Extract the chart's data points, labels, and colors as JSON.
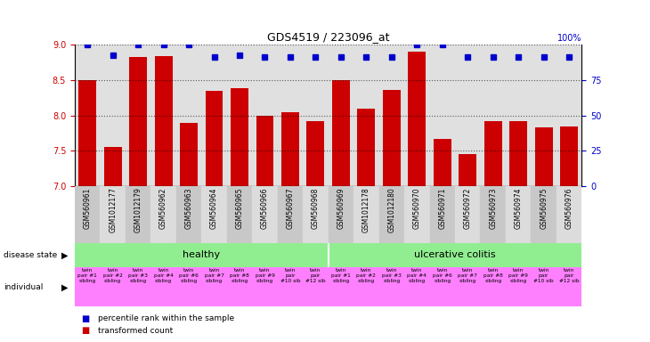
{
  "title": "GDS4519 / 223096_at",
  "samples": [
    "GSM560961",
    "GSM1012177",
    "GSM1012179",
    "GSM560962",
    "GSM560963",
    "GSM560964",
    "GSM560965",
    "GSM560966",
    "GSM560967",
    "GSM560968",
    "GSM560969",
    "GSM1012178",
    "GSM1012180",
    "GSM560970",
    "GSM560971",
    "GSM560972",
    "GSM560973",
    "GSM560974",
    "GSM560975",
    "GSM560976"
  ],
  "bar_values": [
    8.5,
    7.55,
    8.82,
    8.84,
    7.9,
    8.35,
    8.38,
    8.0,
    8.05,
    7.92,
    8.5,
    8.1,
    8.36,
    8.9,
    7.67,
    7.45,
    7.92,
    7.92,
    7.83,
    7.84
  ],
  "dot_values": [
    9.0,
    8.85,
    9.0,
    9.0,
    9.0,
    8.82,
    8.85,
    8.82,
    8.82,
    8.82,
    8.82,
    8.82,
    8.82,
    9.0,
    9.0,
    8.82,
    8.82,
    8.82,
    8.82,
    8.82
  ],
  "ylim": [
    7.0,
    9.0
  ],
  "y_ticks_left": [
    7.0,
    7.5,
    8.0,
    8.5,
    9.0
  ],
  "y_ticks_right": [
    0,
    25,
    50,
    75,
    100
  ],
  "individual_labels": [
    "twin\npair #1\nsibling",
    "twin\npair #2\nsibling",
    "twin\npair #3\nsibling",
    "twin\npair #4\nsibling",
    "twin\npair #6\nsibling",
    "twin\npair #7\nsibling",
    "twin\npair #8\nsibling",
    "twin\npair #9\nsibling",
    "twin\npair\n#10 sib",
    "twin\npair\n#12 sib",
    "twin\npair #1\nsibling",
    "twin\npair #2\nsibling",
    "twin\npair #3\nsibling",
    "twin\npair #4\nsibling",
    "twin\npair #6\nsibling",
    "twin\npair #7\nsibling",
    "twin\npair #8\nsibling",
    "twin\npair #9\nsibling",
    "twin\npair\n#10 sib",
    "twin\npair\n#12 sib"
  ],
  "bar_color": "#CC0000",
  "dot_color": "#0000CC",
  "axis_bg": "#E0E0E0",
  "col_bg_dark": "#C8C8C8",
  "col_bg_light": "#DCDCDC",
  "healthy_color": "#90EE90",
  "ulcerative_color": "#90EE90",
  "individual_color": "#FF80FF",
  "healthy_label": "healthy",
  "ulcerative_label": "ulcerative colitis",
  "healthy_split": 10,
  "n_samples": 20
}
